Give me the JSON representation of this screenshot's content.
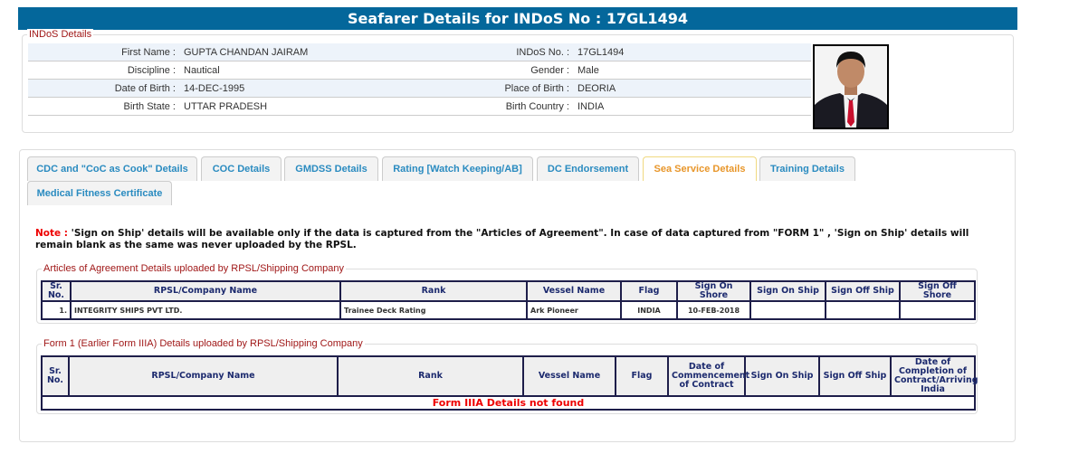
{
  "header": {
    "title": "Seafarer Details for INDoS No : 17GL1494"
  },
  "indos_details": {
    "legend": "INDoS Details",
    "rows": [
      {
        "l1": "First Name :",
        "v1": "GUPTA CHANDAN JAIRAM",
        "l2": "INDoS No. :",
        "v2": "17GL1494"
      },
      {
        "l1": "Discipline :",
        "v1": "Nautical",
        "l2": "Gender :",
        "v2": "Male"
      },
      {
        "l1": "Date of Birth :",
        "v1": "14-DEC-1995",
        "l2": "Place of Birth :",
        "v2": "DEORIA"
      },
      {
        "l1": "Birth State :",
        "v1": "UTTAR PRADESH",
        "l2": "Birth Country :",
        "v2": "INDIA"
      }
    ]
  },
  "tabs": [
    "CDC and \"CoC as Cook\" Details",
    "COC Details",
    "GMDSS Details",
    "Rating [Watch Keeping/AB]",
    "DC Endorsement",
    "Sea Service Details",
    "Training Details",
    "Medical Fitness Certificate"
  ],
  "active_tab": "Sea Service Details",
  "note": {
    "label": "Note :",
    "text": " 'Sign on Ship' details will be available only if the data is captured from the \"Articles of Agreement\". In case of data captured from \"FORM 1\" , 'Sign on Ship' details will remain blank as the same was never uploaded by the RPSL."
  },
  "articles": {
    "legend": "Articles of Agreement Details uploaded by RPSL/Shipping Company",
    "headers": [
      "Sr. No.",
      "RPSL/Company Name",
      "Rank",
      "Vessel Name",
      "Flag",
      "Sign On Shore",
      "Sign On Ship",
      "Sign Off Ship",
      "Sign Off Shore"
    ],
    "rows": [
      [
        "1.",
        "INTEGRITY SHIPS PVT LTD.",
        "Trainee Deck Rating",
        "Ark Pioneer",
        "INDIA",
        "10-FEB-2018",
        "",
        "",
        ""
      ]
    ]
  },
  "form1": {
    "legend": "Form 1 (Earlier Form IIIA) Details uploaded by RPSL/Shipping Company",
    "headers": [
      "Sr. No.",
      "RPSL/Company Name",
      "Rank",
      "Vessel Name",
      "Flag",
      "Date of Commencement of Contract",
      "Sign On Ship",
      "Sign Off Ship",
      "Date of Completion of Contract/Arriving India"
    ],
    "empty_message": "Form IIIA Details not found"
  },
  "colors": {
    "header": "#04679b",
    "legend": "#a01818",
    "tab_text": "#2a8bc0",
    "active_tab": "#e8962a",
    "error": "#ee0000"
  }
}
